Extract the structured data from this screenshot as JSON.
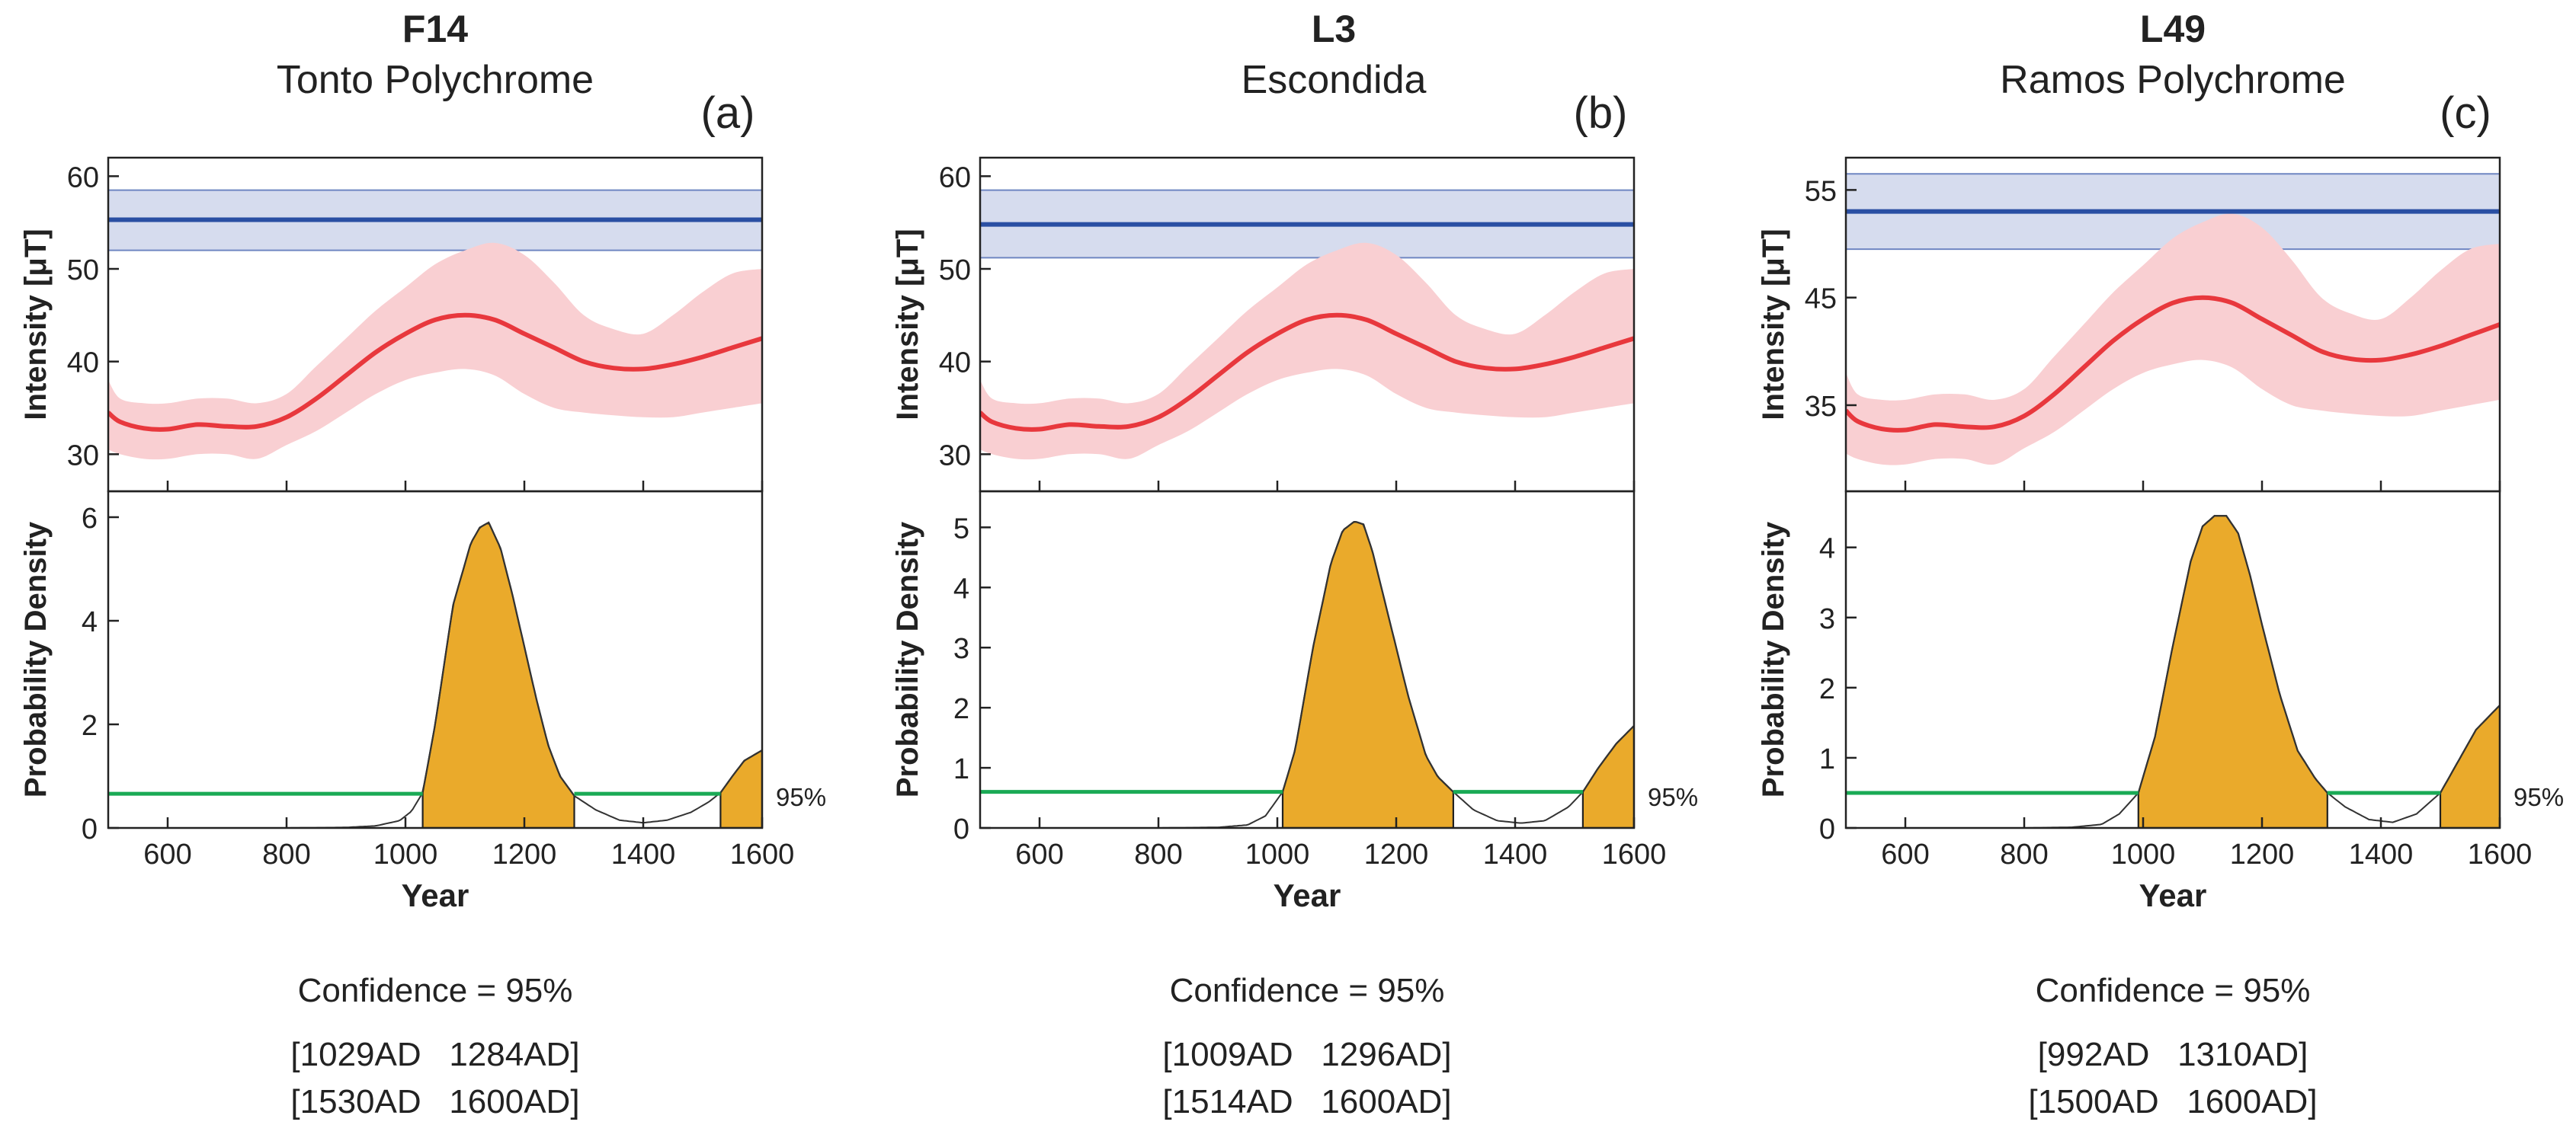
{
  "chart_data": [
    {
      "type": "line",
      "panel_label": "(a)",
      "sample_id": "F14",
      "sample_type": "Tonto Polychrome",
      "xlabel": "Year",
      "xlim": [
        500,
        1600
      ],
      "xticks": [
        "600",
        "800",
        "1000",
        "1200",
        "1400",
        "1600"
      ],
      "top": {
        "ylabel": "Intensity [μT]",
        "ylim": [
          26,
          62
        ],
        "yticks": [
          "30",
          "40",
          "50",
          "60"
        ],
        "sample_intensity": 55.3,
        "sample_band": [
          52.0,
          58.5
        ],
        "curve_x": [
          500,
          520,
          560,
          600,
          650,
          700,
          750,
          800,
          850,
          900,
          950,
          1000,
          1050,
          1100,
          1150,
          1200,
          1250,
          1300,
          1350,
          1400,
          1450,
          1500,
          1550,
          1600
        ],
        "curve_mean": [
          34.5,
          33.5,
          32.8,
          32.7,
          33.2,
          33.0,
          33.0,
          34.0,
          36.0,
          38.5,
          41.0,
          43.0,
          44.5,
          45.0,
          44.5,
          43.0,
          41.5,
          40.0,
          39.3,
          39.2,
          39.7,
          40.5,
          41.5,
          42.5
        ],
        "curve_upper": [
          38.0,
          36.0,
          35.5,
          35.5,
          36.0,
          36.0,
          35.5,
          36.5,
          39.5,
          42.5,
          45.5,
          48.0,
          50.5,
          52.0,
          52.8,
          51.5,
          48.5,
          45.0,
          43.5,
          43.0,
          45.0,
          47.5,
          49.5,
          50.0
        ],
        "curve_lower": [
          30.5,
          30.0,
          29.5,
          29.5,
          30.0,
          30.0,
          29.5,
          31.0,
          32.5,
          34.5,
          36.5,
          38.0,
          38.8,
          39.2,
          38.5,
          36.5,
          35.0,
          34.5,
          34.2,
          34.0,
          34.0,
          34.5,
          35.0,
          35.5
        ]
      },
      "bottom": {
        "ylabel": "Probability Density",
        "ylim": [
          0,
          6.5
        ],
        "yticks": [
          "0",
          "2",
          "4",
          "6"
        ],
        "density_x": [
          500,
          800,
          900,
          950,
          990,
          1010,
          1029,
          1050,
          1080,
          1110,
          1125,
          1140,
          1160,
          1180,
          1200,
          1220,
          1240,
          1260,
          1284,
          1320,
          1360,
          1400,
          1440,
          1480,
          1510,
          1530,
          1550,
          1570,
          1600
        ],
        "density_y": [
          0,
          0,
          0.01,
          0.04,
          0.14,
          0.32,
          0.68,
          2.0,
          4.3,
          5.5,
          5.8,
          5.9,
          5.4,
          4.5,
          3.5,
          2.5,
          1.6,
          1.0,
          0.62,
          0.35,
          0.15,
          0.1,
          0.15,
          0.3,
          0.5,
          0.68,
          1.0,
          1.3,
          1.5
        ],
        "threshold": 0.66,
        "intervals": [
          [
            1029,
            1284
          ],
          [
            1530,
            1600
          ]
        ],
        "threshold_label": "95%"
      },
      "confidence_label": "Confidence = 95%",
      "interval_lines": [
        "[1029AD   1284AD]",
        "[1530AD   1600AD]"
      ]
    },
    {
      "type": "line",
      "panel_label": "(b)",
      "sample_id": "L3",
      "sample_type": "Escondida",
      "xlabel": "Year",
      "xlim": [
        500,
        1600
      ],
      "xticks": [
        "600",
        "800",
        "1000",
        "1200",
        "1400",
        "1600"
      ],
      "top": {
        "ylabel": "Intensity [μT]",
        "ylim": [
          26,
          62
        ],
        "yticks": [
          "30",
          "40",
          "50",
          "60"
        ],
        "sample_intensity": 54.8,
        "sample_band": [
          51.2,
          58.5
        ],
        "curve_x": [
          500,
          520,
          560,
          600,
          650,
          700,
          750,
          800,
          850,
          900,
          950,
          1000,
          1050,
          1100,
          1150,
          1200,
          1250,
          1300,
          1350,
          1400,
          1450,
          1500,
          1550,
          1600
        ],
        "curve_mean": [
          34.5,
          33.5,
          32.8,
          32.7,
          33.2,
          33.0,
          33.0,
          34.0,
          36.0,
          38.5,
          41.0,
          43.0,
          44.5,
          45.0,
          44.5,
          43.0,
          41.5,
          40.0,
          39.3,
          39.2,
          39.7,
          40.5,
          41.5,
          42.5
        ],
        "curve_upper": [
          38.0,
          36.0,
          35.5,
          35.5,
          36.0,
          36.0,
          35.5,
          36.5,
          39.5,
          42.5,
          45.5,
          48.0,
          50.5,
          52.0,
          52.8,
          51.5,
          48.5,
          45.0,
          43.5,
          43.0,
          45.0,
          47.5,
          49.5,
          50.0
        ],
        "curve_lower": [
          30.5,
          30.0,
          29.5,
          29.5,
          30.0,
          30.0,
          29.5,
          31.0,
          32.5,
          34.5,
          36.5,
          38.0,
          38.8,
          39.2,
          38.5,
          36.5,
          35.0,
          34.5,
          34.2,
          34.0,
          34.0,
          34.5,
          35.0,
          35.5
        ]
      },
      "bottom": {
        "ylabel": "Probability Density",
        "ylim": [
          0,
          5.6
        ],
        "yticks": [
          "0",
          "1",
          "2",
          "3",
          "4",
          "5"
        ],
        "density_x": [
          500,
          800,
          900,
          950,
          980,
          1009,
          1030,
          1060,
          1090,
          1110,
          1130,
          1145,
          1160,
          1180,
          1200,
          1220,
          1250,
          1270,
          1296,
          1330,
          1370,
          1410,
          1450,
          1490,
          1514,
          1540,
          1570,
          1600
        ],
        "density_y": [
          0,
          0,
          0.01,
          0.05,
          0.2,
          0.6,
          1.3,
          3.0,
          4.4,
          4.95,
          5.1,
          5.05,
          4.6,
          3.8,
          3.0,
          2.2,
          1.2,
          0.85,
          0.6,
          0.3,
          0.12,
          0.08,
          0.12,
          0.35,
          0.6,
          1.0,
          1.4,
          1.7
        ],
        "threshold": 0.6,
        "intervals": [
          [
            1009,
            1296
          ],
          [
            1514,
            1600
          ]
        ],
        "threshold_label": "95%"
      },
      "confidence_label": "Confidence = 95%",
      "interval_lines": [
        "[1009AD   1296AD]",
        "[1514AD   1600AD]"
      ]
    },
    {
      "type": "line",
      "panel_label": "(c)",
      "sample_id": "L49",
      "sample_type": "Ramos Polychrome",
      "xlabel": "Year",
      "xlim": [
        500,
        1600
      ],
      "xticks": [
        "600",
        "800",
        "1000",
        "1200",
        "1400",
        "1600"
      ],
      "top": {
        "ylabel": "Intensity [μT]",
        "ylim": [
          27,
          58
        ],
        "yticks": [
          "35",
          "45",
          "55"
        ],
        "sample_intensity": 53.0,
        "sample_band": [
          49.5,
          56.5
        ],
        "curve_x": [
          500,
          520,
          560,
          600,
          650,
          700,
          750,
          800,
          850,
          900,
          950,
          1000,
          1050,
          1100,
          1150,
          1200,
          1250,
          1300,
          1350,
          1400,
          1450,
          1500,
          1550,
          1600
        ],
        "curve_mean": [
          34.5,
          33.5,
          32.8,
          32.7,
          33.2,
          33.0,
          33.0,
          34.0,
          36.0,
          38.5,
          41.0,
          43.0,
          44.5,
          45.0,
          44.5,
          43.0,
          41.5,
          40.0,
          39.3,
          39.2,
          39.7,
          40.5,
          41.5,
          42.5
        ],
        "curve_upper": [
          38.0,
          36.0,
          35.5,
          35.5,
          36.0,
          36.0,
          35.5,
          36.5,
          39.5,
          42.5,
          45.5,
          48.0,
          50.5,
          52.0,
          52.8,
          51.5,
          48.5,
          45.0,
          43.5,
          43.0,
          45.0,
          47.5,
          49.5,
          50.0
        ],
        "curve_lower": [
          30.5,
          30.0,
          29.5,
          29.5,
          30.0,
          30.0,
          29.5,
          31.0,
          32.5,
          34.5,
          36.5,
          38.0,
          38.8,
          39.2,
          38.5,
          36.5,
          35.0,
          34.5,
          34.2,
          34.0,
          34.0,
          34.5,
          35.0,
          35.5
        ]
      },
      "bottom": {
        "ylabel": "Probability Density",
        "ylim": [
          0,
          4.8
        ],
        "yticks": [
          "0",
          "1",
          "2",
          "3",
          "4"
        ],
        "density_x": [
          500,
          800,
          880,
          930,
          960,
          992,
          1020,
          1050,
          1080,
          1100,
          1120,
          1140,
          1160,
          1180,
          1200,
          1230,
          1260,
          1290,
          1310,
          1340,
          1380,
          1420,
          1460,
          1500,
          1530,
          1560,
          1600
        ],
        "density_y": [
          0,
          0,
          0.01,
          0.05,
          0.2,
          0.5,
          1.3,
          2.6,
          3.8,
          4.3,
          4.45,
          4.45,
          4.2,
          3.6,
          2.9,
          1.9,
          1.1,
          0.7,
          0.5,
          0.3,
          0.12,
          0.08,
          0.2,
          0.5,
          0.95,
          1.4,
          1.75
        ],
        "threshold": 0.5,
        "intervals": [
          [
            992,
            1310
          ],
          [
            1500,
            1600
          ]
        ],
        "threshold_label": "95%"
      },
      "confidence_label": "Confidence = 95%",
      "interval_lines": [
        "[992AD   1310AD]",
        "[1500AD   1600AD]"
      ]
    }
  ],
  "colors": {
    "sample_line": "#2a4fa3",
    "sample_band_fill": "#d6dcee",
    "sample_band_edge": "#6f86c2",
    "curve_line": "#e8383d",
    "curve_band": "#f9cfd2",
    "density_fill": "#eaaa2b",
    "threshold_line": "#1aaa55",
    "axis": "#222222"
  }
}
